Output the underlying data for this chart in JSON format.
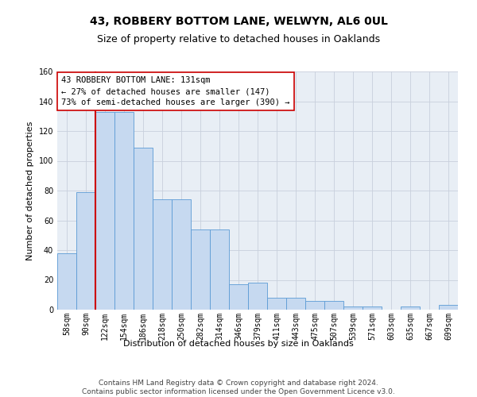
{
  "title": "43, ROBBERY BOTTOM LANE, WELWYN, AL6 0UL",
  "subtitle": "Size of property relative to detached houses in Oaklands",
  "xlabel": "Distribution of detached houses by size in Oaklands",
  "ylabel": "Number of detached properties",
  "bar_labels": [
    "58sqm",
    "90sqm",
    "122sqm",
    "154sqm",
    "186sqm",
    "218sqm",
    "250sqm",
    "282sqm",
    "314sqm",
    "346sqm",
    "379sqm",
    "411sqm",
    "443sqm",
    "475sqm",
    "507sqm",
    "539sqm",
    "571sqm",
    "603sqm",
    "635sqm",
    "667sqm",
    "699sqm"
  ],
  "bar_values": [
    38,
    79,
    133,
    133,
    109,
    74,
    74,
    54,
    54,
    17,
    18,
    8,
    8,
    6,
    6,
    2,
    2,
    0,
    2,
    0,
    3
  ],
  "bar_color": "#c6d9f0",
  "bar_edge_color": "#5b9bd5",
  "vline_index": 2,
  "vline_color": "#cc0000",
  "annotation_lines": [
    "43 ROBBERY BOTTOM LANE: 131sqm",
    "← 27% of detached houses are smaller (147)",
    "73% of semi-detached houses are larger (390) →"
  ],
  "annotation_box_color": "white",
  "annotation_box_edge": "#cc0000",
  "ylim": [
    0,
    160
  ],
  "yticks": [
    0,
    20,
    40,
    60,
    80,
    100,
    120,
    140,
    160
  ],
  "grid_color": "#c8d0dc",
  "background_color": "#e8eef5",
  "footer_lines": [
    "Contains HM Land Registry data © Crown copyright and database right 2024.",
    "Contains public sector information licensed under the Open Government Licence v3.0."
  ],
  "title_fontsize": 10,
  "subtitle_fontsize": 9,
  "axis_label_fontsize": 8,
  "tick_fontsize": 7,
  "annotation_fontsize": 7.5,
  "footer_fontsize": 6.5
}
